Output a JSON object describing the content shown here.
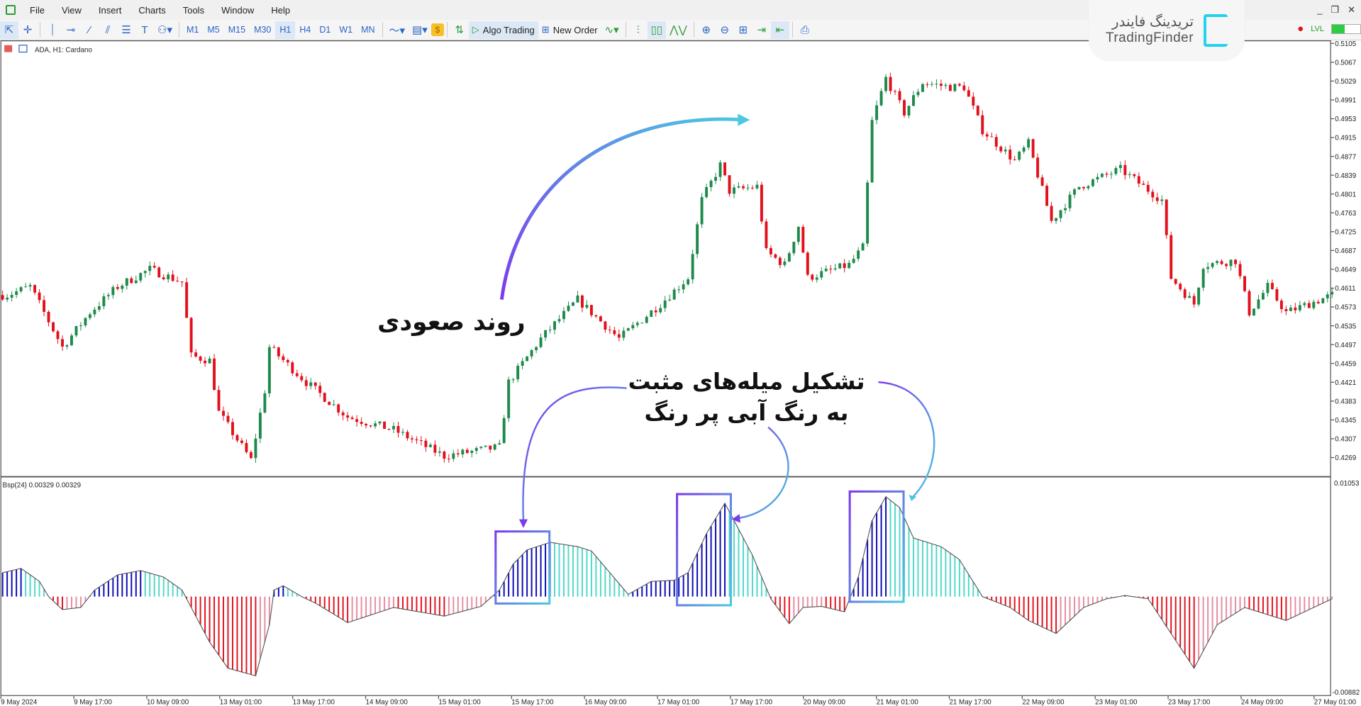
{
  "menu": [
    "File",
    "View",
    "Insert",
    "Charts",
    "Tools",
    "Window",
    "Help"
  ],
  "toolbar": {
    "timeframes": [
      "M1",
      "M5",
      "M15",
      "M30",
      "H1",
      "H4",
      "D1",
      "W1",
      "MN"
    ],
    "active_timeframe": "H1",
    "algo_trading": "Algo Trading",
    "new_order": "New Order"
  },
  "logo": {
    "fa": "تریدینگ فایندر",
    "en": "TradingFinder"
  },
  "chart": {
    "title": "ADA, H1:  Cardano",
    "price_labels": [
      "0.5105",
      "0.5067",
      "0.5029",
      "0.4991",
      "0.4953",
      "0.4915",
      "0.4877",
      "0.4839",
      "0.4801",
      "0.4763",
      "0.4725",
      "0.4687",
      "0.4649",
      "0.4611",
      "0.4573",
      "0.4535",
      "0.4497",
      "0.4459",
      "0.4421",
      "0.4383",
      "0.4345",
      "0.4307",
      "0.4269"
    ],
    "time_labels": [
      "9 May 2024",
      "9 May 17:00",
      "10 May 09:00",
      "13 May 01:00",
      "13 May 17:00",
      "14 May 09:00",
      "15 May 01:00",
      "15 May 17:00",
      "16 May 09:00",
      "17 May 01:00",
      "17 May 17:00",
      "20 May 09:00",
      "21 May 01:00",
      "21 May 17:00",
      "22 May 09:00",
      "23 May 01:00",
      "23 May 17:00",
      "24 May 09:00",
      "27 May 01:00"
    ],
    "price_path": [
      [
        1,
        0.4597
      ],
      [
        6,
        0.4614
      ],
      [
        13,
        0.4492
      ],
      [
        19,
        0.4562
      ],
      [
        25,
        0.4614
      ],
      [
        32,
        0.4649
      ],
      [
        39,
        0.4623
      ],
      [
        41,
        0.4474
      ],
      [
        45,
        0.4465
      ],
      [
        47,
        0.436
      ],
      [
        54,
        0.4264
      ],
      [
        57,
        0.4404
      ],
      [
        58,
        0.4492
      ],
      [
        66,
        0.4421
      ],
      [
        75,
        0.4351
      ],
      [
        85,
        0.4325
      ],
      [
        96,
        0.4272
      ],
      [
        108,
        0.429
      ],
      [
        110,
        0.4421
      ],
      [
        117,
        0.4509
      ],
      [
        125,
        0.4588
      ],
      [
        134,
        0.4509
      ],
      [
        143,
        0.4579
      ],
      [
        149,
        0.4632
      ],
      [
        152,
        0.4789
      ],
      [
        156,
        0.4859
      ],
      [
        158,
        0.4807
      ],
      [
        164,
        0.4816
      ],
      [
        166,
        0.4684
      ],
      [
        170,
        0.4658
      ],
      [
        173,
        0.4737
      ],
      [
        175,
        0.4632
      ],
      [
        184,
        0.4658
      ],
      [
        187,
        0.4693
      ],
      [
        189,
        0.4947
      ],
      [
        192,
        0.5035
      ],
      [
        196,
        0.4965
      ],
      [
        200,
        0.5026
      ],
      [
        206,
        0.5017
      ],
      [
        209,
        0.5017
      ],
      [
        213,
        0.493
      ],
      [
        220,
        0.4868
      ],
      [
        223,
        0.4903
      ],
      [
        228,
        0.4746
      ],
      [
        234,
        0.4816
      ],
      [
        243,
        0.4851
      ],
      [
        248,
        0.4816
      ],
      [
        252,
        0.4789
      ],
      [
        254,
        0.4632
      ],
      [
        259,
        0.4579
      ],
      [
        261,
        0.4658
      ],
      [
        268,
        0.4667
      ],
      [
        271,
        0.4562
      ],
      [
        275,
        0.4614
      ],
      [
        279,
        0.4562
      ],
      [
        289,
        0.4597
      ]
    ],
    "colors": {
      "bull": "#1e8a4c",
      "bear": "#e3101c"
    }
  },
  "indicator": {
    "label": "Bsp(24) 0.00329 0.00329",
    "top_label": "0.01053",
    "bottom_label": "-0.00882",
    "range": [
      -0.00882,
      0.01053
    ],
    "path": [
      [
        0,
        0.0022
      ],
      [
        4,
        0.0026
      ],
      [
        8,
        0.0014
      ],
      [
        10,
        0
      ],
      [
        13,
        -0.0012
      ],
      [
        17,
        -0.001
      ],
      [
        20,
        0.0006
      ],
      [
        25,
        0.002
      ],
      [
        30,
        0.0024
      ],
      [
        35,
        0.0018
      ],
      [
        39,
        0.0006
      ],
      [
        41,
        -0.001
      ],
      [
        45,
        -0.0042
      ],
      [
        49,
        -0.0066
      ],
      [
        55,
        -0.0073
      ],
      [
        58,
        -0.0026
      ],
      [
        59,
        0.0006
      ],
      [
        61,
        0.001
      ],
      [
        65,
        0
      ],
      [
        68,
        -0.0006
      ],
      [
        75,
        -0.0024
      ],
      [
        85,
        -0.001
      ],
      [
        96,
        -0.0018
      ],
      [
        104,
        -0.0009
      ],
      [
        108,
        0.0006
      ],
      [
        111,
        0.003
      ],
      [
        114,
        0.0043
      ],
      [
        119,
        0.005
      ],
      [
        125,
        0.0046
      ],
      [
        128,
        0.0042
      ],
      [
        132,
        0.0022
      ],
      [
        136,
        0.0002
      ],
      [
        141,
        0.0014
      ],
      [
        146,
        0.0015
      ],
      [
        149,
        0.0022
      ],
      [
        153,
        0.0058
      ],
      [
        157,
        0.0086
      ],
      [
        159,
        0.007
      ],
      [
        163,
        0.0038
      ],
      [
        167,
        -0.0002
      ],
      [
        171,
        -0.0025
      ],
      [
        174,
        -0.001
      ],
      [
        178,
        -0.0009
      ],
      [
        183,
        -0.0014
      ],
      [
        186,
        0.0018
      ],
      [
        189,
        0.007
      ],
      [
        192,
        0.0092
      ],
      [
        195,
        0.0082
      ],
      [
        198,
        0.0054
      ],
      [
        204,
        0.0046
      ],
      [
        208,
        0.0034
      ],
      [
        213,
        0
      ],
      [
        219,
        -0.001
      ],
      [
        223,
        -0.0022
      ],
      [
        229,
        -0.0034
      ],
      [
        235,
        -0.001
      ],
      [
        240,
        -0.0002
      ],
      [
        244,
        0.0001
      ],
      [
        249,
        -0.0002
      ],
      [
        254,
        -0.0034
      ],
      [
        259,
        -0.0066
      ],
      [
        264,
        -0.0026
      ],
      [
        270,
        -0.001
      ],
      [
        279,
        -0.0022
      ],
      [
        285,
        -0.001
      ],
      [
        289,
        -0.0002
      ]
    ],
    "colors": {
      "pos_up": "#0a0ab4",
      "pos_down": "#4fd8c8",
      "neg_down": "#e3101c",
      "neg_up": "#e58da0"
    }
  },
  "annotations": {
    "uptrend": "روند صعودی",
    "bars_line1": "تشکیل میله‌های مثبت",
    "bars_line2": "به رنگ آبی پر رنگ",
    "gradient": [
      "#7c3aed",
      "#4cc9e0"
    ]
  }
}
